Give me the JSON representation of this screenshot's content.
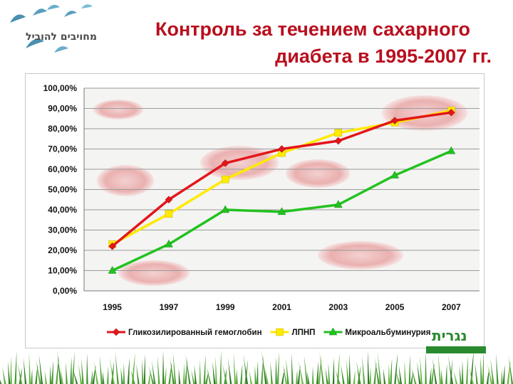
{
  "header": {
    "title_line1": "Контроль за течением сахарного",
    "title_line2": "диабета в 1995-2007 гг.",
    "logo_text": "מחויבים להוביל"
  },
  "brand": {
    "name": "נגרית"
  },
  "colors": {
    "title": "#b80f1e",
    "series1": "#e3161b",
    "series2": "#ffea00",
    "series3": "#22c21f"
  },
  "chart_data": {
    "type": "line",
    "title": "",
    "xlabel": "",
    "ylabel": "",
    "ylim": [
      0,
      100
    ],
    "yticks": [
      "0,00%",
      "10,00%",
      "20,00%",
      "30,00%",
      "40,00%",
      "50,00%",
      "60,00%",
      "70,00%",
      "80,00%",
      "90,00%",
      "100,00%"
    ],
    "categories": [
      "1995",
      "1997",
      "1999",
      "2001",
      "2003",
      "2005",
      "2007"
    ],
    "grid": true,
    "legend_position": "bottom",
    "series": [
      {
        "name": "Гликозилированный гемоглобин",
        "color": "#e3161b",
        "marker": "diamond",
        "values": [
          22,
          45,
          63,
          70,
          74,
          84,
          88
        ]
      },
      {
        "name": "ЛПНП",
        "color": "#ffea00",
        "marker": "square",
        "values": [
          23,
          38,
          55,
          68,
          78,
          83,
          89
        ]
      },
      {
        "name": "Микроальбуминурия",
        "color": "#22c21f",
        "marker": "triangle",
        "values": [
          10,
          23,
          40,
          39,
          42.5,
          57,
          69
        ]
      }
    ]
  }
}
